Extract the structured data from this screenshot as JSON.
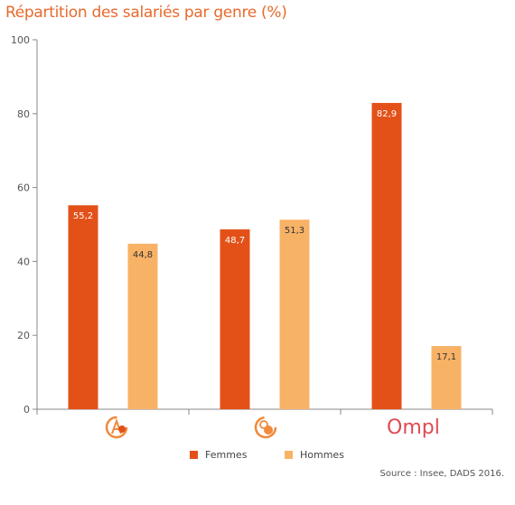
{
  "title": "Répartition des salariés par genre (%)",
  "source": "Source : Insee, DADS 2016.",
  "colors": {
    "femmes": "#e35119",
    "hommes": "#f8b266",
    "title": "#e8692c"
  },
  "groups": [
    {
      "logo": "logo-group-1",
      "text": ""
    },
    {
      "logo": "logo-group-2",
      "text": ""
    },
    {
      "logo": "opml-logo",
      "text": "Ompl"
    }
  ],
  "chart_data": {
    "type": "bar",
    "title": "Répartition des salariés par genre (%)",
    "categories": [
      "",
      "",
      "Ompl"
    ],
    "series": [
      {
        "name": "Femmes",
        "values": [
          55.2,
          48.7,
          82.9
        ],
        "labels": [
          "55,2",
          "48,7",
          "82,9"
        ],
        "color": "#e35119"
      },
      {
        "name": "Hommes",
        "values": [
          44.8,
          51.3,
          17.1
        ],
        "labels": [
          "44,8",
          "51,3",
          "17,1"
        ],
        "color": "#f8b266"
      }
    ],
    "yticks": [
      0,
      20,
      40,
      60,
      80,
      100
    ],
    "ylim": [
      0,
      100
    ],
    "xlabel": "",
    "ylabel": "",
    "grid": false,
    "legend": "bottom-center"
  }
}
